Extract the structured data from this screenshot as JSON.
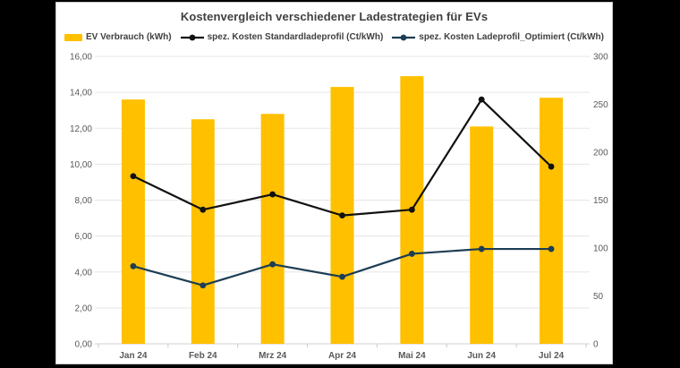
{
  "chart_data": {
    "type": "combo",
    "title": "Kostenvergleich verschiedener Ladestrategien für EVs",
    "categories": [
      "Jan 24",
      "Feb 24",
      "Mrz 24",
      "Apr 24",
      "Mai 24",
      "Jun 24",
      "Jul 24"
    ],
    "series": [
      {
        "name": "EV Verbrauch (kWh)",
        "kind": "bar",
        "axis": "left",
        "color": "#FFC000",
        "values": [
          13.6,
          12.5,
          12.8,
          14.3,
          14.9,
          12.1,
          13.7
        ]
      },
      {
        "name": "spez. Kosten Standardladeprofil (Ct/kWh)",
        "kind": "line",
        "axis": "right",
        "color": "#111111",
        "values": [
          175,
          140,
          156,
          134,
          140,
          255,
          185
        ]
      },
      {
        "name": "spez. Kosten Ladeprofil_Optimiert (Ct/kWh)",
        "kind": "line",
        "axis": "right",
        "color": "#1d3d54",
        "values": [
          81,
          61,
          83,
          70,
          94,
          99,
          99
        ]
      }
    ],
    "left_axis": {
      "min": 0,
      "max": 16,
      "step": 2,
      "tick_labels": [
        "0,00",
        "2,00",
        "4,00",
        "6,00",
        "8,00",
        "10,00",
        "12,00",
        "14,00",
        "16,00"
      ]
    },
    "right_axis": {
      "min": 0,
      "max": 300,
      "step": 50,
      "tick_labels": [
        "0",
        "50",
        "100",
        "150",
        "200",
        "250",
        "300"
      ]
    },
    "grid": true,
    "legend_position": "top",
    "colors": {
      "background": "#ffffff",
      "page_background": "#000000",
      "gridline": "#e5e5e5",
      "axis_line": "#d2d2d2",
      "tick_mark": "#c9c9c9",
      "title_text": "#404040",
      "axis_text": "#595959"
    }
  }
}
